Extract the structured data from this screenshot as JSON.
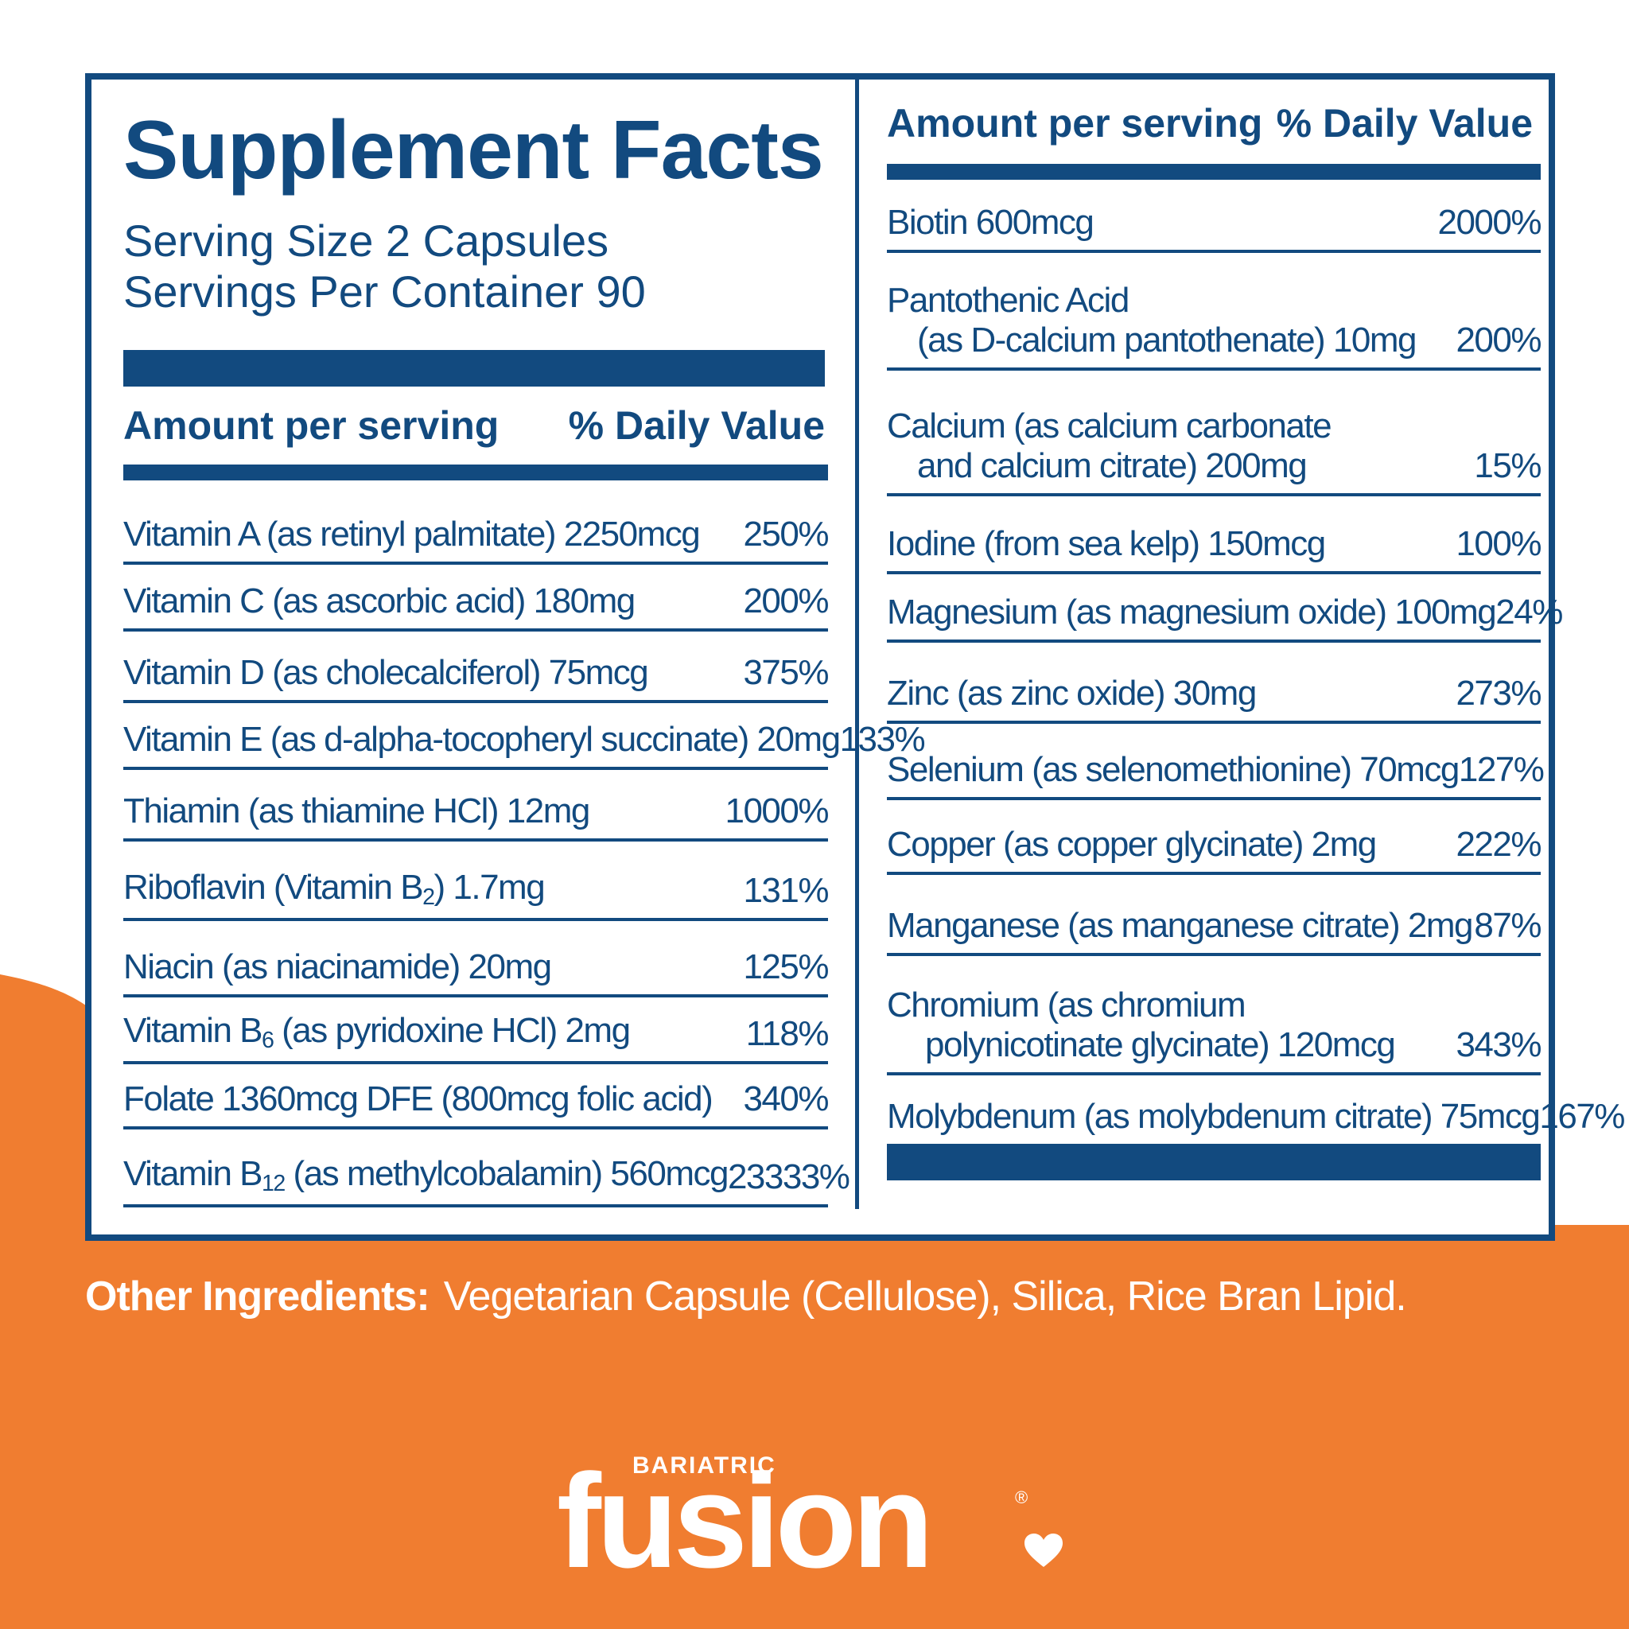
{
  "colors": {
    "navy": "#124a7f",
    "orange": "#f07d30",
    "white": "#ffffff"
  },
  "title": "Supplement Facts",
  "serving_size": "Serving Size 2 Capsules",
  "servings_per_container": "Servings Per Container 90",
  "header": {
    "amount": "Amount per serving",
    "daily_value": "% Daily Value"
  },
  "left_rows": [
    {
      "name": "Vitamin A (as retinyl palmitate) 2250mcg",
      "dv": "250%"
    },
    {
      "name": "Vitamin C (as ascorbic acid) 180mg",
      "dv": "200%"
    },
    {
      "name": "Vitamin D (as cholecalciferol) 75mcg",
      "dv": "375%"
    },
    {
      "name": "Vitamin E (as d-alpha-tocopheryl succinate) 20mg",
      "dv": "133%"
    },
    {
      "name": "Thiamin (as thiamine HCl) 12mg",
      "dv": "1000%"
    },
    {
      "name_a": "Riboflavin (Vitamin B",
      "sub": "2",
      "name_b": ") 1.7mg",
      "dv": "131%"
    },
    {
      "name": "Niacin (as niacinamide) 20mg",
      "dv": "125%"
    },
    {
      "name_a": "Vitamin B",
      "sub": "6",
      "name_b": " (as pyridoxine HCl) 2mg",
      "dv": "118%"
    },
    {
      "name": "Folate 1360mcg DFE (800mcg folic acid)",
      "dv": "340%"
    },
    {
      "name_a": "Vitamin B",
      "sub": "12",
      "name_b": " (as methylcobalamin) 560mcg",
      "dv": "23333%"
    }
  ],
  "right_rows": [
    {
      "name": "Biotin 600mcg",
      "dv": "2000%"
    },
    {
      "line1": "Pantothenic Acid",
      "line2": "(as D-calcium pantothenate) 10mg",
      "dv": "200%"
    },
    {
      "line1": "Calcium (as calcium carbonate",
      "line2": "and calcium citrate) 200mg",
      "dv": "15%"
    },
    {
      "name": "Iodine (from sea kelp) 150mcg",
      "dv": "100%"
    },
    {
      "name": "Magnesium (as magnesium oxide) 100mg",
      "dv": "24%"
    },
    {
      "name": "Zinc (as zinc oxide) 30mg",
      "dv": "273%"
    },
    {
      "name": "Selenium (as selenomethionine) 70mcg",
      "dv": "127%"
    },
    {
      "name": "Copper (as copper glycinate) 2mg",
      "dv": "222%"
    },
    {
      "name": "Manganese (as manganese citrate) 2mg",
      "dv": "87%"
    },
    {
      "line1": "Chromium (as chromium",
      "line2": "polynicotinate glycinate) 120mcg",
      "dv": "343%"
    },
    {
      "name": "Molybdenum (as molybdenum citrate) 75mcg",
      "dv": "167%"
    }
  ],
  "other_ingredients": {
    "label": "Other Ingredients:",
    "text": "Vegetarian Capsule (Cellulose), Silica, Rice Bran Lipid."
  },
  "logo": {
    "small": "BARIATRIC",
    "big": "fusion",
    "reg": "®",
    "icon": "heart-icon"
  }
}
